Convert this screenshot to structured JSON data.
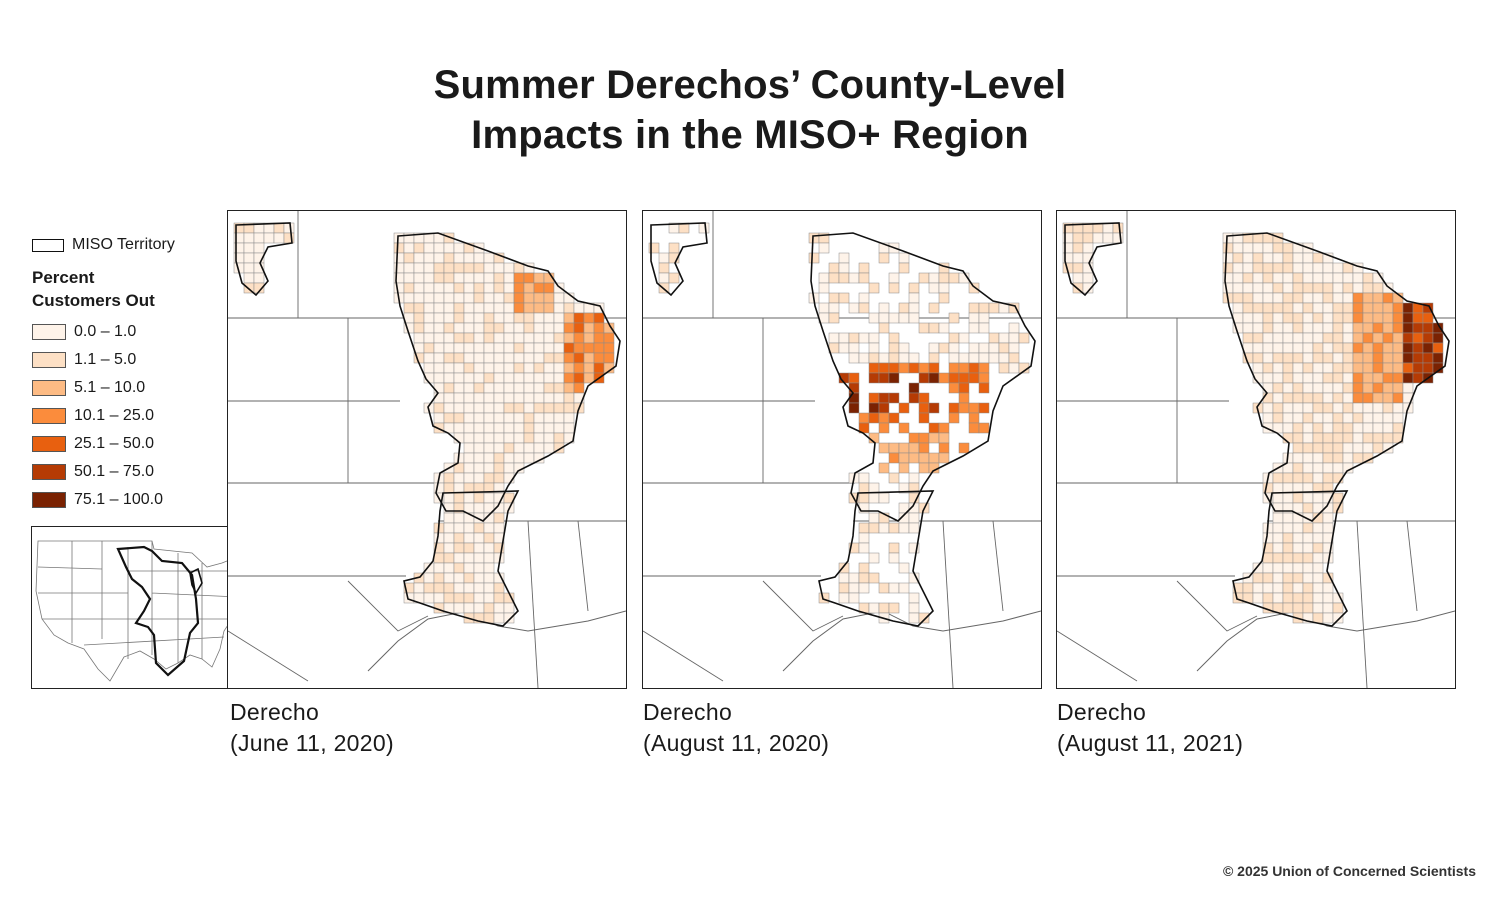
{
  "title": {
    "line1": "Summer Derechos’ County-Level",
    "line2": "Impacts in the MISO+ Region"
  },
  "legend": {
    "territory_label": "MISO Territory",
    "heading_line1": "Percent",
    "heading_line2": "Customers Out",
    "classes": [
      {
        "label": "0.0 – 1.0",
        "color": "#fef3e9"
      },
      {
        "label": "1.1 – 5.0",
        "color": "#fde0c5"
      },
      {
        "label": "5.1 – 10.0",
        "color": "#fdbb84"
      },
      {
        "label": "10.1 – 25.0",
        "color": "#fb8c3c"
      },
      {
        "label": "25.1 – 50.0",
        "color": "#e8600f"
      },
      {
        "label": "50.1 – 75.0",
        "color": "#b53b04"
      },
      {
        "label": "75.1 – 100.0",
        "color": "#7a2202"
      }
    ]
  },
  "maps": [
    {
      "caption_line1": "Derecho",
      "caption_line2": "(June 11, 2020)",
      "hotspot": "michigan-lower"
    },
    {
      "caption_line1": "Derecho",
      "caption_line2": "(August 11, 2020)",
      "hotspot": "iowa-illinois-band"
    },
    {
      "caption_line1": "Derecho",
      "caption_line2": "(August 11, 2021)",
      "hotspot": "michigan-central"
    }
  ],
  "colors": {
    "miso_outline": "#111111",
    "state_lines": "#666666",
    "county_lines": "#8a8a8a"
  },
  "credit": "© 2025 Union of Concerned Scientists"
}
